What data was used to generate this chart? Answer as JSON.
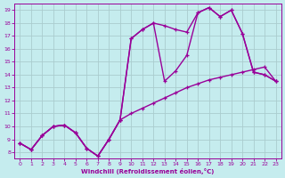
{
  "xlabel": "Windchill (Refroidissement éolien,°C)",
  "bg_color": "#c5ecee",
  "line_color": "#990099",
  "grid_color": "#b8d8da",
  "xlim_min": -0.5,
  "xlim_max": 23.5,
  "ylim_min": 7.5,
  "ylim_max": 19.5,
  "xticks": [
    0,
    1,
    2,
    3,
    4,
    5,
    6,
    7,
    8,
    9,
    10,
    11,
    12,
    13,
    14,
    15,
    16,
    17,
    18,
    19,
    20,
    21,
    22,
    23
  ],
  "yticks": [
    8,
    9,
    10,
    11,
    12,
    13,
    14,
    15,
    16,
    17,
    18,
    19
  ],
  "line1_x": [
    0,
    1,
    2,
    3,
    4,
    5,
    6,
    7,
    8,
    9,
    10,
    11,
    12,
    13,
    14,
    15,
    16,
    17,
    18,
    19,
    20,
    21,
    22,
    23
  ],
  "line1_y": [
    8.7,
    8.2,
    9.3,
    10.0,
    10.1,
    9.5,
    8.3,
    7.7,
    9.0,
    10.5,
    11.0,
    11.4,
    11.8,
    12.2,
    12.6,
    13.0,
    13.3,
    13.6,
    13.8,
    14.0,
    14.2,
    14.4,
    14.6,
    13.5
  ],
  "line2_x": [
    0,
    1,
    2,
    3,
    4,
    5,
    6,
    7,
    8,
    9,
    10,
    11,
    12,
    13,
    14,
    15,
    16,
    17,
    18,
    19,
    20,
    21,
    22,
    23
  ],
  "line2_y": [
    8.7,
    8.2,
    9.3,
    10.0,
    10.1,
    9.5,
    8.3,
    7.7,
    9.0,
    10.5,
    16.8,
    17.5,
    18.0,
    17.8,
    17.5,
    17.3,
    18.8,
    19.2,
    18.5,
    19.0,
    17.2,
    14.2,
    14.0,
    13.5
  ],
  "line3_x": [
    0,
    1,
    2,
    3,
    4,
    5,
    6,
    7,
    8,
    9,
    10,
    11,
    12,
    13,
    14,
    15,
    16,
    17,
    18,
    19,
    20,
    21,
    22,
    23
  ],
  "line3_y": [
    8.7,
    8.2,
    9.3,
    10.0,
    10.1,
    9.5,
    8.3,
    7.7,
    9.0,
    10.5,
    16.8,
    17.5,
    18.0,
    13.5,
    14.3,
    15.5,
    18.8,
    19.2,
    18.5,
    19.0,
    17.2,
    14.2,
    14.0,
    13.5
  ],
  "linewidth": 1.0,
  "markersize": 3.0
}
